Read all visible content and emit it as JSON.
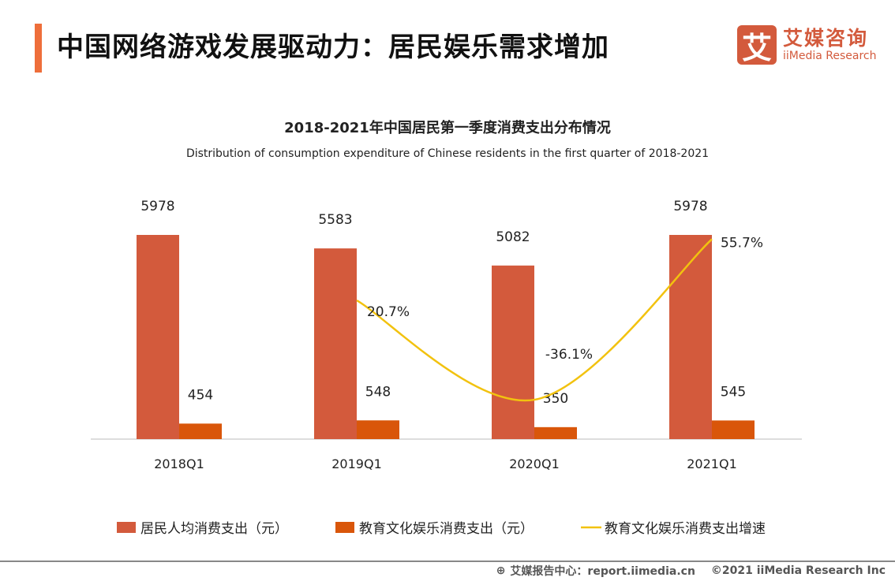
{
  "header": {
    "title": "中国网络游戏发展驱动力：居民娱乐需求增加"
  },
  "logo": {
    "mark": "艾",
    "cn": "艾媒咨询",
    "en": "iiMedia Research"
  },
  "footer": {
    "source": "艾媒报告中心：report.iimedia.cn",
    "copyright": "©2021  iiMedia Research  Inc"
  },
  "colors": {
    "accent": "#ee6e3a",
    "series1": "#d35a3c",
    "series2": "#d9560a",
    "line": "#f2c20f"
  },
  "chart_data": {
    "type": "bar",
    "title": "2018-2021年中国居民第一季度消费支出分布情况",
    "subtitle": "Distribution of consumption expenditure of Chinese residents in the first quarter of 2018-2021",
    "categories": [
      "2018Q1",
      "2019Q1",
      "2020Q1",
      "2021Q1"
    ],
    "series": [
      {
        "name": "居民人均消费支出（元）",
        "type": "bar",
        "values": [
          5978,
          5583,
          5082,
          5978
        ],
        "labels": [
          "5978",
          "5583",
          "5082",
          "5978"
        ]
      },
      {
        "name": "教育文化娱乐消费支出（元）",
        "type": "bar",
        "values": [
          454,
          548,
          350,
          545
        ],
        "labels": [
          "454",
          "548",
          "350",
          "545"
        ]
      },
      {
        "name": "教育文化娱乐消费支出增速",
        "type": "line",
        "axis": "secondary",
        "values": [
          null,
          20.7,
          -36.1,
          55.7
        ],
        "labels": [
          "",
          "20.7%",
          "-36.1%",
          "55.7%"
        ]
      }
    ],
    "legend": "bottom",
    "grid": false
  }
}
